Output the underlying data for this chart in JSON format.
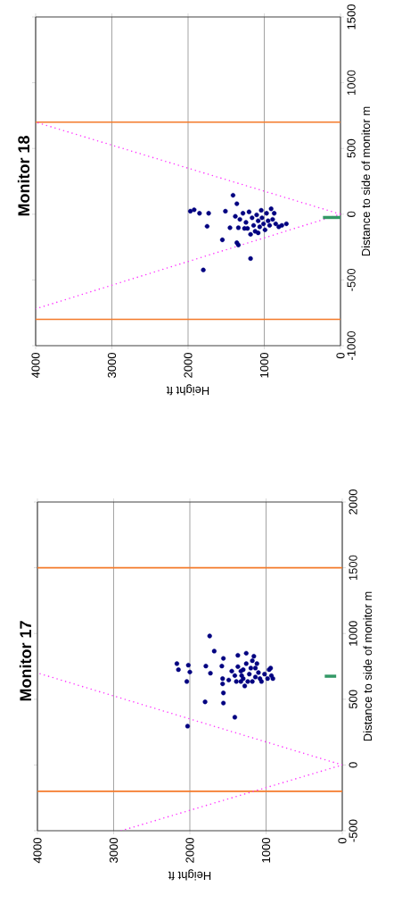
{
  "chart_data": [
    {
      "type": "scatter",
      "title": "Monitor 17",
      "xlabel": "Height  ft",
      "ylabel": "Distance to side of monitor  m",
      "xlim": [
        4000,
        0
      ],
      "xticks": [
        4000,
        3000,
        2000,
        1000,
        0
      ],
      "ylim": [
        -500,
        2000
      ],
      "yticks": [
        -500,
        0,
        500,
        1000,
        1500,
        2000
      ],
      "grid": "x",
      "ref_lines": [
        {
          "axis": "y",
          "value": -200,
          "color": "#f47a2a"
        },
        {
          "axis": "y",
          "value": 1500,
          "color": "#f47a2a"
        }
      ],
      "series": [
        {
          "color": "#000080",
          "marker": "circle",
          "x": [
            1740,
            1680,
            2170,
            2150,
            2020,
            2000,
            2040,
            2030,
            1790,
            1730,
            1800,
            1560,
            1580,
            1570,
            1570,
            1560,
            1560,
            1410,
            1490,
            1370,
            1260,
            1160,
            1450,
            1410,
            1370,
            1330,
            1300,
            1300,
            1260,
            1220,
            1180,
            1140,
            1140,
            1100,
            1060,
            1020,
            980,
            960,
            930,
            940,
            910,
            1180,
            1240,
            1320,
            1390,
            1200,
            1080,
            1120,
            1280,
            1330
          ],
          "values": [
            981,
            866,
            771,
            725,
            759,
            707,
            635,
            295,
            752,
            698,
            480,
            811,
            752,
            657,
            617,
            548,
            471,
            363,
            646,
            834,
            850,
            827,
            714,
            680,
            748,
            635,
            725,
            657,
            771,
            691,
            635,
            737,
            669,
            703,
            635,
            691,
            657,
            725,
            680,
            737,
            657,
            793,
            635,
            680,
            635,
            737,
            657,
            771,
            601,
            714
          ]
        },
        {
          "type": "line",
          "color": "#ff33ff",
          "line_style": "dotted",
          "x": [
            2900,
            0,
            4000
          ],
          "values": [
            -500,
            0,
            700
          ]
        },
        {
          "type": "line",
          "color": "#339966",
          "line_style": "solid",
          "x": [
            80,
            230
          ],
          "values": [
            675,
            675
          ]
        }
      ]
    },
    {
      "type": "scatter",
      "title": "Monitor 18",
      "xlabel": "Height  ft",
      "ylabel": "Distance to side of monitor  m",
      "xlim": [
        4000,
        0
      ],
      "xticks": [
        4000,
        3000,
        2000,
        1000,
        0
      ],
      "ylim": [
        -1000,
        1500
      ],
      "yticks": [
        -1000,
        -500,
        0,
        500,
        1000,
        1500
      ],
      "grid": "x",
      "ref_lines": [
        {
          "axis": "y",
          "value": -800,
          "color": "#f47a2a"
        },
        {
          "axis": "y",
          "value": 700,
          "color": "#f47a2a"
        }
      ],
      "series": [
        {
          "color": "#000080",
          "marker": "circle",
          "x": [
            1970,
            1920,
            1850,
            1740,
            1730,
            1750,
            1800,
            1510,
            1550,
            1410,
            1360,
            1450,
            1360,
            1340,
            1180,
            1340,
            1380,
            1320,
            1280,
            1240,
            1220,
            1200,
            1160,
            1140,
            1120,
            1100,
            1080,
            1060,
            1040,
            1030,
            1010,
            990,
            970,
            950,
            930,
            910,
            890,
            870,
            850,
            810,
            770,
            710,
            1260,
            1180,
            1080
          ],
          "values": [
            23,
            34,
            7,
            null,
            7,
            -92,
            -424,
            23,
            -195,
            144,
            80,
            -103,
            -217,
            -234,
            -337,
            -103,
            -16,
            -39,
            7,
            -62,
            -108,
            18,
            -27,
            -85,
            -130,
            -5,
            -50,
            -96,
            30,
            -27,
            -73,
            -119,
            7,
            -50,
            -85,
            41,
            -39,
            7,
            -73,
            -96,
            -85,
            -73,
            -108,
            -153,
            -142
          ]
        },
        {
          "type": "line",
          "color": "#ff33ff",
          "line_style": "dotted",
          "x": [
            4000,
            0,
            4000
          ],
          "values": [
            -720,
            0,
            700
          ]
        },
        {
          "type": "line",
          "color": "#339966",
          "line_style": "solid",
          "x": [
            0,
            230
          ],
          "values": [
            -25,
            -25
          ]
        }
      ]
    }
  ]
}
